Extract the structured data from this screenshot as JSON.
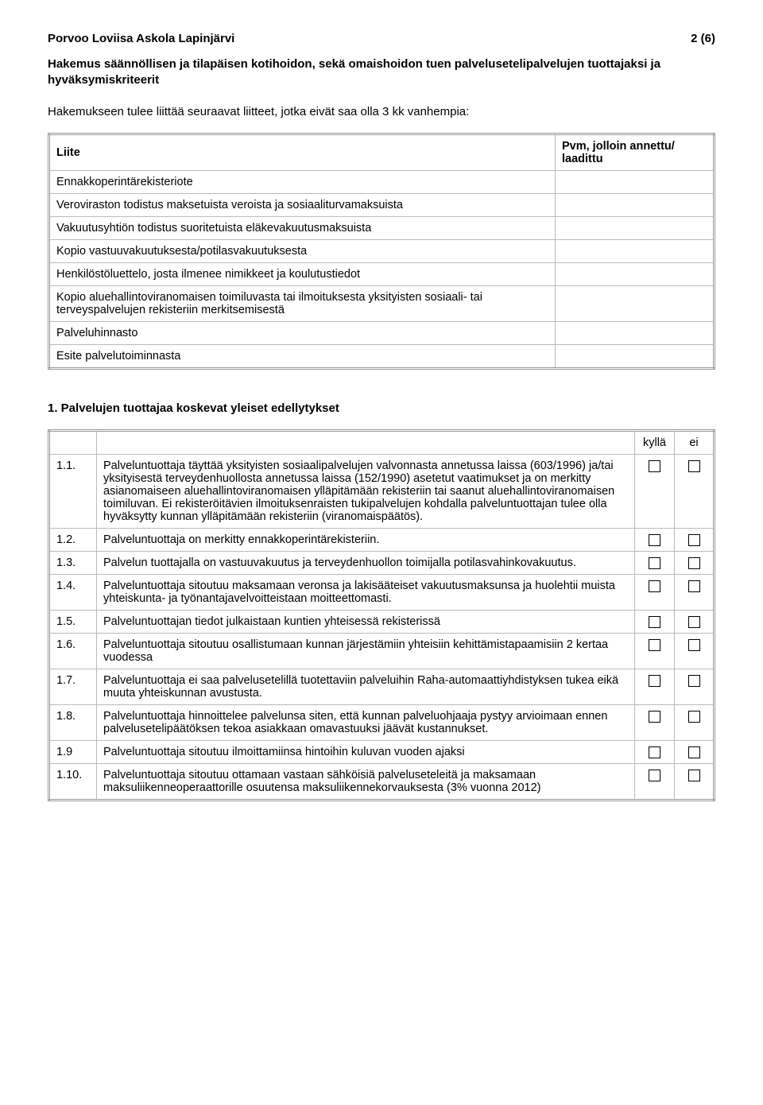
{
  "header": {
    "left": "Porvoo Loviisa Askola Lapinjärvi",
    "right": "2 (6)"
  },
  "subtitle": "Hakemus säännöllisen ja tilapäisen kotihoidon, sekä omaishoidon tuen palvelusetelipalvelujen tuottajaksi ja hyväksymiskriteerit",
  "intro": "Hakemukseen tulee liittää seuraavat liitteet, jotka eivät saa olla 3 kk vanhempia:",
  "attachTable": {
    "col1": "Liite",
    "col2": "Pvm, jolloin annettu/ laadittu",
    "rows": [
      "Ennakkoperintärekisteriote",
      "Veroviraston todistus maksetuista veroista ja sosiaaliturvamaksuista",
      "Vakuutusyhtiön todistus suoritetuista eläkevakuutusmaksuista",
      "Kopio vastuuvakuutuksesta/potilasvakuutuksesta",
      "Henkilöstöluettelo, josta ilmenee nimikkeet ja koulutustiedot",
      "Kopio aluehallintoviranomaisen toimiluvasta tai ilmoituksesta yksityisten sosiaali- tai terveyspalvelujen rekisteriin merkitsemisestä",
      "Palveluhinnasto",
      "Esite palvelutoiminnasta"
    ]
  },
  "sectionTitle": "1. Palvelujen tuottajaa koskevat yleiset edellytykset",
  "reqTable": {
    "yesLabel": "kyllä",
    "noLabel": "ei",
    "rows": [
      {
        "num": "1.1.",
        "text": "Palveluntuottaja täyttää yksityisten sosiaalipalvelujen valvonnasta annetussa laissa (603/1996) ja/tai yksityisestä terveydenhuollosta annetussa laissa (152/1990) asetetut vaatimukset ja on merkitty asianomaiseen aluehallintoviranomaisen ylläpitämään rekisteriin tai saanut aluehallintoviranomaisen toimiluvan. Ei rekisteröitävien ilmoituksenraisten tukipalvelujen kohdalla palveluntuottajan tulee olla hyväksytty kunnan ylläpitämään rekisteriin (viranomaispäätös)."
      },
      {
        "num": "1.2.",
        "text": "Palveluntuottaja on merkitty ennakkoperintärekisteriin."
      },
      {
        "num": "1.3.",
        "text": "Palvelun tuottajalla on vastuuvakuutus ja terveydenhuollon toimijalla potilasvahinkovakuutus."
      },
      {
        "num": "1.4.",
        "text": "Palveluntuottaja sitoutuu maksamaan veronsa ja lakisääteiset vakuutusmaksunsa ja huolehtii muista yhteiskunta- ja työnantajavelvoitteistaan moitteettomasti."
      },
      {
        "num": "1.5.",
        "text": "Palveluntuottajan tiedot julkaistaan kuntien yhteisessä rekisterissä"
      },
      {
        "num": "1.6.",
        "text": "Palveluntuottaja sitoutuu osallistumaan kunnan järjestämiin yhteisiin kehittämistapaamisiin 2 kertaa vuodessa"
      },
      {
        "num": "1.7.",
        "text": "Palveluntuottaja ei saa palvelusetelillä tuotettaviin palveluihin Raha-automaattiyhdistyksen tukea eikä muuta yhteiskunnan avustusta."
      },
      {
        "num": "1.8.",
        "text": "Palveluntuottaja hinnoittelee palvelunsa siten, että kunnan palveluohjaaja pystyy arvioimaan ennen palvelusetelipäätöksen tekoa asiakkaan omavastuuksi jäävät kustannukset."
      },
      {
        "num": "1.9",
        "text": "Palveluntuottaja sitoutuu ilmoittamiinsa hintoihin kuluvan vuoden ajaksi"
      },
      {
        "num": "1.10.",
        "text": "Palveluntuottaja sitoutuu ottamaan vastaan sähköisiä palveluseteleitä ja maksamaan maksuliikenneoperaattorille osuutensa maksuliikennekorvauksesta (3% vuonna 2012)"
      }
    ]
  }
}
